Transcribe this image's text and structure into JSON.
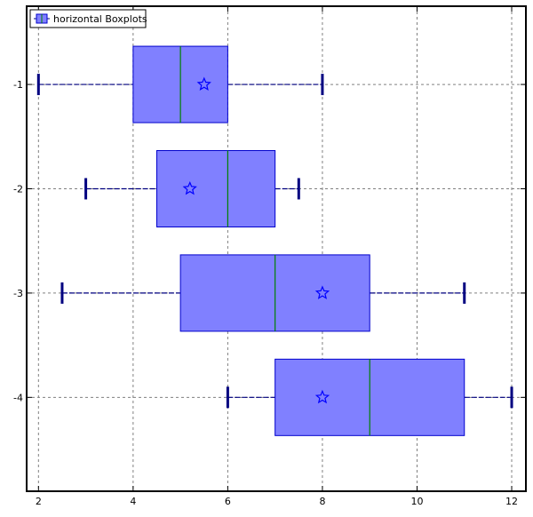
{
  "chart_data": {
    "type": "boxplot",
    "orientation": "horizontal",
    "legend": {
      "label": "horizontal Boxplots",
      "placement": "top-left"
    },
    "xlim": [
      1.75,
      12.3
    ],
    "ylim": [
      -4.9,
      -0.25
    ],
    "xticks": [
      2,
      4,
      6,
      8,
      10,
      12
    ],
    "yticks": [
      -1,
      -2,
      -3,
      -4
    ],
    "grid": true,
    "colors": {
      "box_fill": "#8080ff",
      "box_edge": "#0000cc",
      "median": "#008000",
      "whisker": "#000080",
      "grid": "#808080"
    },
    "series": [
      {
        "y": -1,
        "min": 2,
        "q1": 4,
        "median": 5,
        "mean": 5.5,
        "q3": 6,
        "max": 8
      },
      {
        "y": -2,
        "min": 3,
        "q1": 4.5,
        "median": 6,
        "mean": 5.2,
        "q3": 7,
        "max": 7.5
      },
      {
        "y": -3,
        "min": 2.5,
        "q1": 5,
        "median": 7,
        "mean": 8,
        "q3": 9,
        "max": 11
      },
      {
        "y": -4,
        "min": 6,
        "q1": 7,
        "median": 9,
        "mean": 8,
        "q3": 11,
        "max": 12
      }
    ]
  }
}
